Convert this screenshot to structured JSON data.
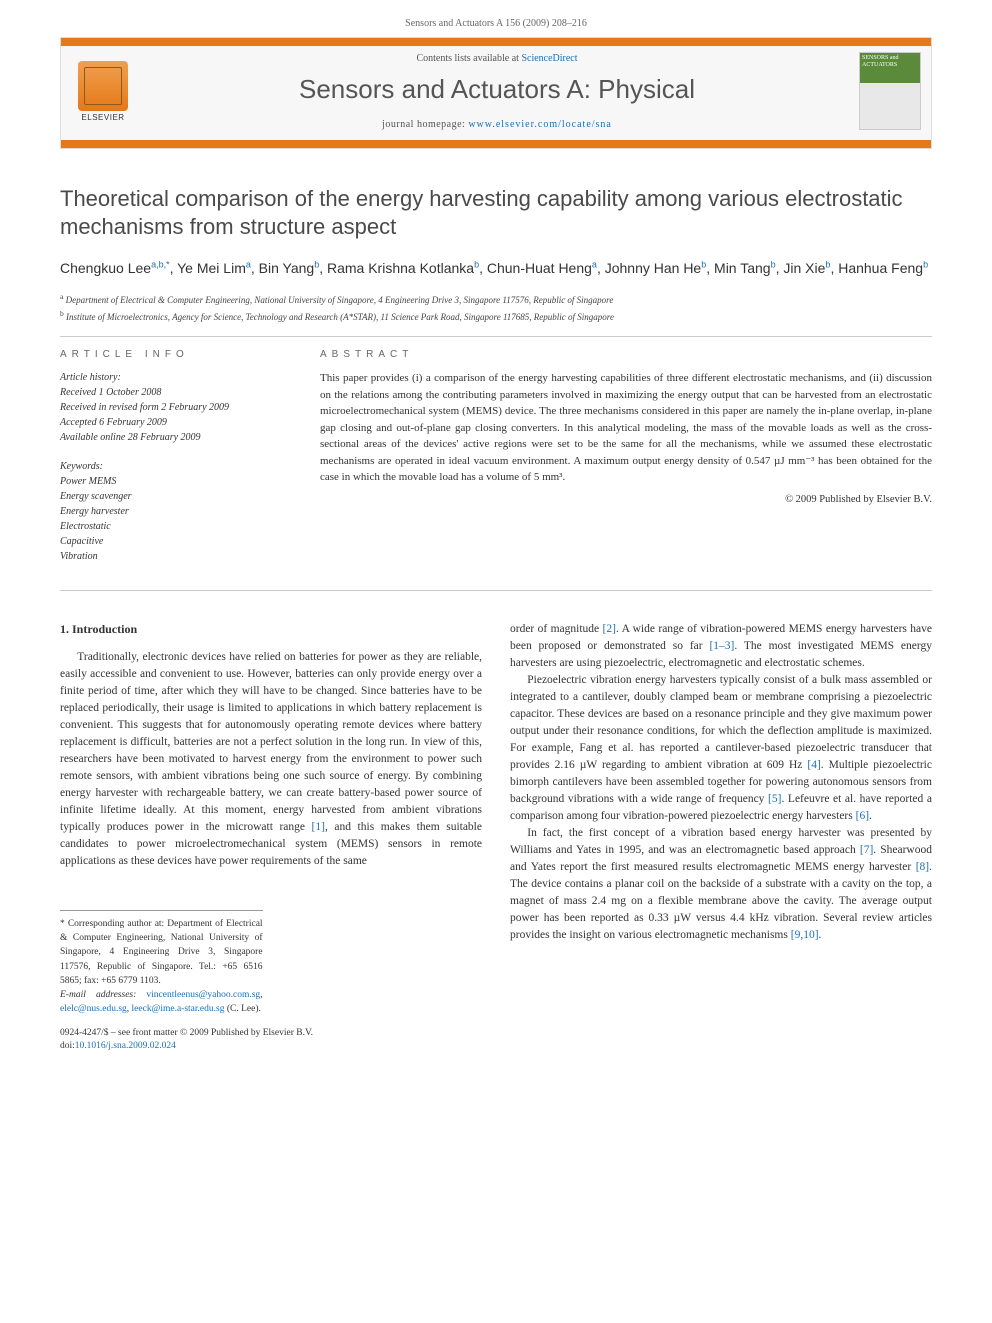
{
  "header_citation": "Sensors and Actuators A 156 (2009) 208–216",
  "banner": {
    "contents_prefix": "Contents lists available at ",
    "contents_link": "ScienceDirect",
    "journal_name": "Sensors and Actuators A: Physical",
    "homepage_prefix": "journal homepage: ",
    "homepage_link": "www.elsevier.com/locate/sna",
    "publisher": "ELSEVIER",
    "cover_text": "SENSORS and ACTUATORS"
  },
  "article": {
    "title": "Theoretical comparison of the energy harvesting capability among various electrostatic mechanisms from structure aspect",
    "authors_html": "Chengkuo Lee<sup>a,b,*</sup>, Ye Mei Lim<sup>a</sup>, Bin Yang<sup>b</sup>, Rama Krishna Kotlanka<sup>b</sup>, Chun-Huat Heng<sup>a</sup>, Johnny Han He<sup>b</sup>, Min Tang<sup>b</sup>, Jin Xie<sup>b</sup>, Hanhua Feng<sup>b</sup>",
    "affiliations": [
      {
        "sup": "a",
        "text": "Department of Electrical & Computer Engineering, National University of Singapore, 4 Engineering Drive 3, Singapore 117576, Republic of Singapore"
      },
      {
        "sup": "b",
        "text": "Institute of Microelectronics, Agency for Science, Technology and Research (A*STAR), 11 Science Park Road, Singapore 117685, Republic of Singapore"
      }
    ]
  },
  "info": {
    "heading": "article info",
    "history_label": "Article history:",
    "history": [
      "Received 1 October 2008",
      "Received in revised form 2 February 2009",
      "Accepted 6 February 2009",
      "Available online 28 February 2009"
    ],
    "keywords_label": "Keywords:",
    "keywords": [
      "Power MEMS",
      "Energy scavenger",
      "Energy harvester",
      "Electrostatic",
      "Capacitive",
      "Vibration"
    ]
  },
  "abstract": {
    "heading": "abstract",
    "text": "This paper provides (i) a comparison of the energy harvesting capabilities of three different electrostatic mechanisms, and (ii) discussion on the relations among the contributing parameters involved in maximizing the energy output that can be harvested from an electrostatic microelectromechanical system (MEMS) device. The three mechanisms considered in this paper are namely the in-plane overlap, in-plane gap closing and out-of-plane gap closing converters. In this analytical modeling, the mass of the movable loads as well as the cross-sectional areas of the devices' active regions were set to be the same for all the mechanisms, while we assumed these electrostatic mechanisms are operated in ideal vacuum environment. A maximum output energy density of 0.547 µJ mm⁻³ has been obtained for the case in which the movable load has a volume of 5 mm³.",
    "copyright": "© 2009 Published by Elsevier B.V."
  },
  "body": {
    "section_num": "1.",
    "section_title": "Introduction",
    "col1_p1": "Traditionally, electronic devices have relied on batteries for power as they are reliable, easily accessible and convenient to use. However, batteries can only provide energy over a finite period of time, after which they will have to be changed. Since batteries have to be replaced periodically, their usage is limited to applications in which battery replacement is convenient. This suggests that for autonomously operating remote devices where battery replacement is difficult, batteries are not a perfect solution in the long run. In view of this, researchers have been motivated to harvest energy from the environment to power such remote sensors, with ambient vibrations being one such source of energy. By combining energy harvester with rechargeable battery, we can create battery-based power source of infinite lifetime ideally. At this moment, energy harvested from ambient vibrations typically produces power in the microwatt range ",
    "col1_ref1": "[1]",
    "col1_p1b": ", and this makes them suitable candidates to power microelectromechanical system (MEMS) sensors in remote applications as these devices have power requirements of the same",
    "col2_p1a": "order of magnitude ",
    "col2_ref2": "[2]",
    "col2_p1b": ". A wide range of vibration-powered MEMS energy harvesters have been proposed or demonstrated so far ",
    "col2_ref13": "[1–3]",
    "col2_p1c": ". The most investigated MEMS energy harvesters are using piezoelectric, electromagnetic and electrostatic schemes.",
    "col2_p2a": "Piezoelectric vibration energy harvesters typically consist of a bulk mass assembled or integrated to a cantilever, doubly clamped beam or membrane comprising a piezoelectric capacitor. These devices are based on a resonance principle and they give maximum power output under their resonance conditions, for which the deflection amplitude is maximized. For example, Fang et al. has reported a cantilever-based piezoelectric transducer that provides 2.16 µW regarding to ambient vibration at 609 Hz ",
    "col2_ref4": "[4]",
    "col2_p2b": ". Multiple piezoelectric bimorph cantilevers have been assembled together for powering autonomous sensors from background vibrations with a wide range of frequency ",
    "col2_ref5": "[5]",
    "col2_p2c": ". Lefeuvre et al. have reported a comparison among four vibration-powered piezoelectric energy harvesters ",
    "col2_ref6": "[6]",
    "col2_p2d": ".",
    "col2_p3a": "In fact, the first concept of a vibration based energy harvester was presented by Williams and Yates in 1995, and was an electromagnetic based approach ",
    "col2_ref7": "[7]",
    "col2_p3b": ". Shearwood and Yates report the first measured results electromagnetic MEMS energy harvester ",
    "col2_ref8": "[8]",
    "col2_p3c": ". The device contains a planar coil on the backside of a substrate with a cavity on the top, a magnet of mass 2.4 mg on a flexible membrane above the cavity. The average output power has been reported as 0.33 µW versus 4.4 kHz vibration. Several review articles provides the insight on various electromagnetic mechanisms ",
    "col2_ref910": "[9,10]",
    "col2_p3d": "."
  },
  "footnotes": {
    "corr_label": "* Corresponding author at: ",
    "corr_text": "Department of Electrical & Computer Engineering, National University of Singapore, 4 Engineering Drive 3, Singapore 117576, Republic of Singapore. Tel.: +65 6516 5865; fax: +65 6779 1103.",
    "email_label": "E-mail addresses: ",
    "email1": "vincentleenus@yahoo.com.sg",
    "email2": "elelc@nus.edu.sg",
    "email3": "leeck@ime.a-star.edu.sg",
    "email_suffix": " (C. Lee)."
  },
  "footer": {
    "issn": "0924-4247/$ – see front matter © 2009 Published by Elsevier B.V.",
    "doi_label": "doi:",
    "doi": "10.1016/j.sna.2009.02.024"
  },
  "colors": {
    "orange": "#e67817",
    "link": "#1b6fb5",
    "text": "#333333",
    "muted": "#666666",
    "rule": "#cccccc"
  }
}
